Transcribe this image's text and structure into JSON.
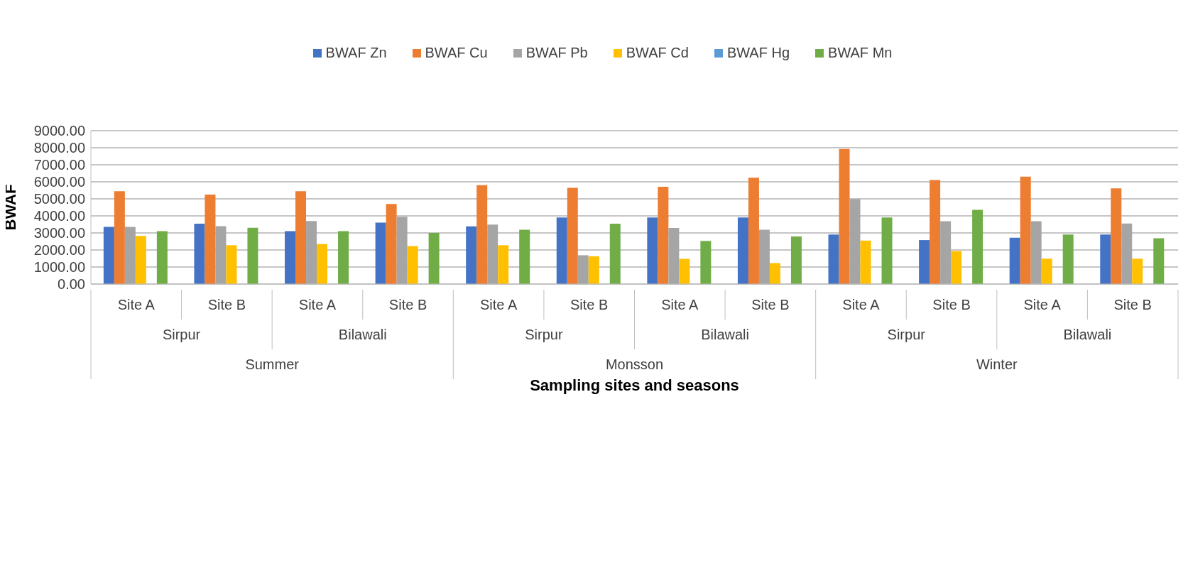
{
  "chart_data": {
    "type": "bar",
    "ylabel": "BWAF",
    "xlabel": "Sampling sites and seasons",
    "categories": [
      "Site A",
      "Site B",
      "Site A",
      "Site B",
      "Site A",
      "Site B",
      "Site A",
      "Site B",
      "Site A",
      "Site B",
      "Site A",
      "Site B"
    ],
    "annotations": [
      "Sirpur",
      "Bilawali",
      "Sirpur",
      "Bilawali",
      "Sirpur",
      "Bilawali",
      "Summer",
      "Monsson",
      "Winter"
    ],
    "series": [
      {
        "name": "BWAF Zn",
        "color": "#4472c4",
        "values": [
          3350,
          3540,
          3100,
          3600,
          3390,
          3910,
          3910,
          3910,
          2910,
          2580,
          2720,
          2910
        ]
      },
      {
        "name": "BWAF Cu",
        "color": "#ed7d31",
        "values": [
          5450,
          5250,
          5450,
          4700,
          5800,
          5650,
          5710,
          6240,
          7930,
          6100,
          6300,
          5610
        ]
      },
      {
        "name": "BWAF Pb",
        "color": "#a5a5a5",
        "values": [
          3350,
          3400,
          3700,
          3950,
          3490,
          1690,
          3290,
          3190,
          4990,
          3690,
          3690,
          3550
        ]
      },
      {
        "name": "BWAF Cd",
        "color": "#ffc000",
        "values": [
          2820,
          2280,
          2350,
          2230,
          2280,
          1630,
          1480,
          1230,
          2550,
          1940,
          1490,
          1490
        ]
      },
      {
        "name": "BWAF Hg",
        "color": "#5b9bd5",
        "values": [
          0,
          0,
          0,
          0,
          0,
          0,
          0,
          0,
          0,
          0,
          0,
          0
        ]
      },
      {
        "name": "BWAF Mn",
        "color": "#70ad47",
        "values": [
          3100,
          3300,
          3100,
          3000,
          3190,
          3540,
          2530,
          2790,
          3910,
          4350,
          2910,
          2690
        ]
      }
    ],
    "ylim": [
      0,
      9000
    ],
    "yticks": [
      {
        "value": 0,
        "label": "0.00"
      },
      {
        "value": 1000,
        "label": "1000.00"
      },
      {
        "value": 2000,
        "label": "2000.00"
      },
      {
        "value": 3000,
        "label": "3000.00"
      },
      {
        "value": 4000,
        "label": "4000.00"
      },
      {
        "value": 5000,
        "label": "5000.00"
      },
      {
        "value": 6000,
        "label": "6000.00"
      },
      {
        "value": 7000,
        "label": "7000.00"
      },
      {
        "value": 8000,
        "label": "8000.00"
      },
      {
        "value": 9000,
        "label": "9000.00"
      }
    ],
    "grid": "y",
    "legend": "top"
  }
}
